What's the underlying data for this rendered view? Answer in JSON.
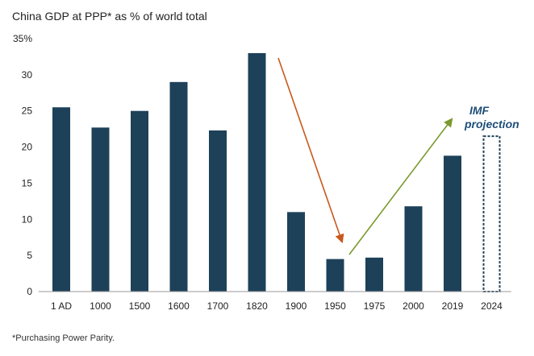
{
  "chart_data": {
    "type": "bar",
    "title": "China GDP at PPP* as % of world total",
    "categories": [
      "1 AD",
      "1000",
      "1500",
      "1600",
      "1700",
      "1820",
      "1900",
      "1950",
      "1975",
      "2000",
      "2019",
      "2024"
    ],
    "values": [
      25.5,
      22.7,
      25.0,
      29.0,
      22.3,
      33.0,
      11.0,
      4.5,
      4.7,
      11.8,
      18.8,
      21.5
    ],
    "projected": [
      false,
      false,
      false,
      false,
      false,
      false,
      false,
      false,
      false,
      false,
      false,
      true
    ],
    "ylim": [
      0,
      35
    ],
    "yticks": [
      "0",
      "5",
      "10",
      "15",
      "20",
      "25",
      "30",
      "35%"
    ],
    "xlabel": "",
    "ylabel": "",
    "grid": false,
    "annotations": [
      "IMF",
      "projection"
    ],
    "colors": {
      "bar": "#1d4159",
      "decline_arrow": "#c8581d",
      "rise_arrow": "#7a9a2e",
      "annotation": "#1f4e79"
    }
  },
  "footnote": "*Purchasing Power Parity."
}
